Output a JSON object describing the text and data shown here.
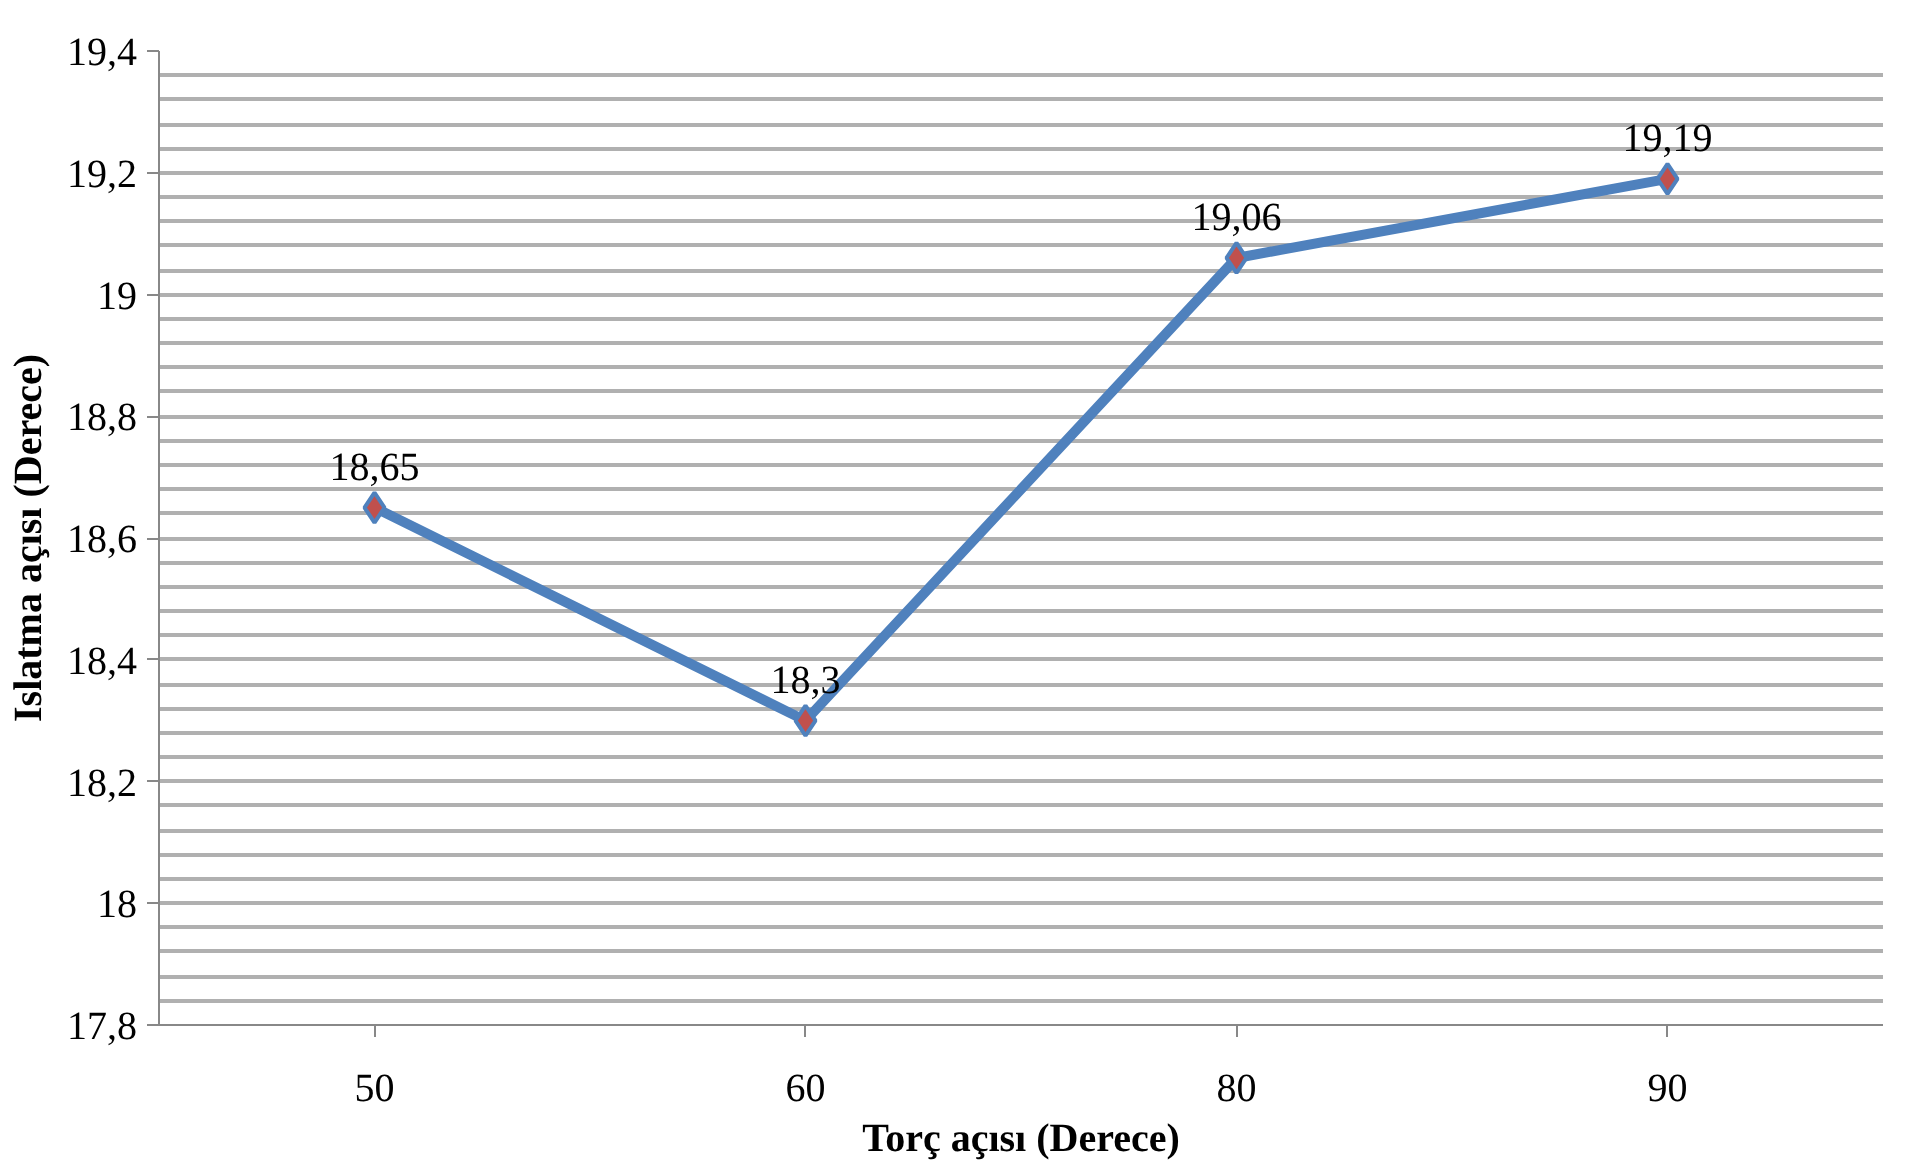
{
  "chart_data": {
    "type": "line",
    "xlabel": "Torç açısı (Derece)",
    "ylabel": "Islatma açısı (Derece)",
    "categories": [
      "50",
      "60",
      "80",
      "90"
    ],
    "series": [
      {
        "color": "#4f81bd",
        "colors": [
          "#c0504d",
          "#c0504d",
          "#c0504d",
          "#c0504d"
        ],
        "values": [
          18.65,
          18.3,
          19.06,
          19.19
        ],
        "value_labels": [
          "18,65",
          "18,3",
          "19,06",
          "19,19"
        ]
      }
    ],
    "ylim": [
      17.8,
      19.4
    ],
    "yticks": [
      {
        "value": 17.8,
        "label": "17,8"
      },
      {
        "value": 17.84,
        "label": null
      },
      {
        "value": 17.88,
        "label": null
      },
      {
        "value": 17.92,
        "label": null
      },
      {
        "value": 17.96,
        "label": null
      },
      {
        "value": 18,
        "label": "18"
      },
      {
        "value": 18.04,
        "label": null
      },
      {
        "value": 18.08,
        "label": null
      },
      {
        "value": 18.12,
        "label": null
      },
      {
        "value": 18.16,
        "label": null
      },
      {
        "value": 18.2,
        "label": "18,2"
      },
      {
        "value": 18.24,
        "label": null
      },
      {
        "value": 18.28,
        "label": null
      },
      {
        "value": 18.32,
        "label": null
      },
      {
        "value": 18.36,
        "label": null
      },
      {
        "value": 18.4,
        "label": "18,4"
      },
      {
        "value": 18.44,
        "label": null
      },
      {
        "value": 18.48,
        "label": null
      },
      {
        "value": 18.52,
        "label": null
      },
      {
        "value": 18.56,
        "label": null
      },
      {
        "value": 18.6,
        "label": "18,6"
      },
      {
        "value": 18.64,
        "label": null
      },
      {
        "value": 18.68,
        "label": null
      },
      {
        "value": 18.72,
        "label": null
      },
      {
        "value": 18.76,
        "label": null
      },
      {
        "value": 18.8,
        "label": "18,8"
      },
      {
        "value": 18.84,
        "label": null
      },
      {
        "value": 18.88,
        "label": null
      },
      {
        "value": 18.92,
        "label": null
      },
      {
        "value": 18.96,
        "label": null
      },
      {
        "value": 19,
        "label": "19"
      },
      {
        "value": 19.04,
        "label": null
      },
      {
        "value": 19.08,
        "label": null
      },
      {
        "value": 19.12,
        "label": null
      },
      {
        "value": 19.16,
        "label": null
      },
      {
        "value": 19.2,
        "label": "19,2"
      },
      {
        "value": 19.24,
        "label": null
      },
      {
        "value": 19.28,
        "label": null
      },
      {
        "value": 19.32,
        "label": null
      },
      {
        "value": 19.36,
        "label": null
      },
      {
        "value": 19.4,
        "label": "19,4"
      }
    ],
    "grid": "y",
    "marker": "diamond",
    "line_style": "solid"
  }
}
